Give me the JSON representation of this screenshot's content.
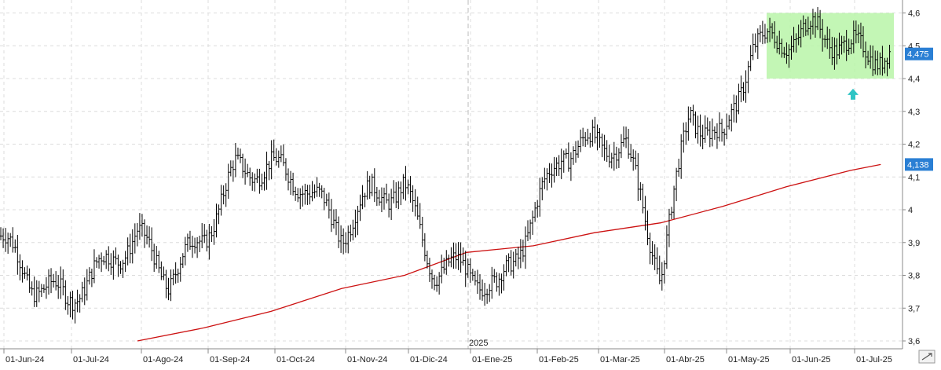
{
  "chart_data": {
    "type": "ohlc",
    "period": "daily",
    "x_tick_labels": [
      "01-Jun-24",
      "01-Jul-24",
      "01-Ago-24",
      "01-Sep-24",
      "01-Oct-24",
      "01-Nov-24",
      "01-Dic-24",
      "01-Ene-25",
      "01-Feb-25",
      "01-Mar-25",
      "01-Abr-25",
      "01-May-25",
      "01-Jun-25",
      "01-Jul-25"
    ],
    "year_marker_label": "2025",
    "y_tick_labels": [
      "3,6",
      "3,7",
      "3,8",
      "3,9",
      "4",
      "4,1",
      "4,2",
      "4,3",
      "4,4",
      "4,5",
      "4,6"
    ],
    "y_ticks": [
      3.6,
      3.7,
      3.8,
      3.9,
      4.0,
      4.1,
      4.2,
      4.3,
      4.4,
      4.5,
      4.6
    ],
    "ylim": [
      3.59,
      4.62
    ],
    "grid": true,
    "last_price_label": "4,475",
    "last_price": 4.475,
    "ma_label": "4,138",
    "ma_value": 4.138,
    "price_series": {
      "name": "",
      "color": "#000000",
      "points": [
        {
          "x": "01-Jun-24",
          "close": 3.92
        },
        {
          "x": "15-Jun-24",
          "close": 3.78
        },
        {
          "x": "01-Jul-24",
          "close": 3.73
        },
        {
          "x": "15-Jul-24",
          "close": 3.82
        },
        {
          "x": "01-Ago-24",
          "close": 3.92
        },
        {
          "x": "15-Ago-24",
          "close": 3.79
        },
        {
          "x": "01-Sep-24",
          "close": 3.92
        },
        {
          "x": "15-Sep-24",
          "close": 4.12
        },
        {
          "x": "01-Oct-24",
          "close": 4.13
        },
        {
          "x": "15-Oct-24",
          "close": 4.08
        },
        {
          "x": "01-Nov-24",
          "close": 3.93
        },
        {
          "x": "15-Nov-24",
          "close": 4.05
        },
        {
          "x": "01-Dic-24",
          "close": 4.06
        },
        {
          "x": "15-Dic-24",
          "close": 3.82
        },
        {
          "x": "01-Ene-25",
          "close": 3.82
        },
        {
          "x": "15-Ene-25",
          "close": 3.75
        },
        {
          "x": "01-Feb-25",
          "close": 3.98
        },
        {
          "x": "15-Feb-25",
          "close": 4.18
        },
        {
          "x": "01-Mar-25",
          "close": 4.2
        },
        {
          "x": "15-Mar-25",
          "close": 4.2
        },
        {
          "x": "01-Abr-25",
          "close": 3.8
        },
        {
          "x": "15-Abr-25",
          "close": 4.3
        },
        {
          "x": "01-May-25",
          "close": 4.2
        },
        {
          "x": "15-May-25",
          "close": 4.5
        },
        {
          "x": "01-Jun-25",
          "close": 4.52
        },
        {
          "x": "15-Jun-25",
          "close": 4.55
        },
        {
          "x": "01-Jul-25",
          "close": 4.49
        },
        {
          "x": "15-Jul-25",
          "close": 4.475
        }
      ]
    },
    "moving_average_series": {
      "name": "",
      "color": "#cc1111",
      "points": [
        {
          "x": "01-Ago-24",
          "y": 3.6
        },
        {
          "x": "01-Sep-24",
          "y": 3.64
        },
        {
          "x": "01-Oct-24",
          "y": 3.69
        },
        {
          "x": "01-Nov-24",
          "y": 3.76
        },
        {
          "x": "01-Dic-24",
          "y": 3.8
        },
        {
          "x": "01-Ene-25",
          "y": 3.87
        },
        {
          "x": "01-Feb-25",
          "y": 3.89
        },
        {
          "x": "01-Mar-25",
          "y": 3.93
        },
        {
          "x": "01-Abr-25",
          "y": 3.96
        },
        {
          "x": "01-May-25",
          "y": 4.01
        },
        {
          "x": "01-Jun-25",
          "y": 4.07
        },
        {
          "x": "01-Jul-25",
          "y": 4.12
        },
        {
          "x": "15-Jul-25",
          "y": 4.138
        }
      ]
    },
    "highlight_range": {
      "y_low": 4.4,
      "y_high": 4.6,
      "color": "#b8f5a8",
      "from": "01-May-25",
      "to": "15-Jul-25"
    },
    "annotation_arrow": {
      "icon": "up-arrow-icon",
      "color": "#2ec4c4",
      "x": "01-Jul-25",
      "y": 4.35
    }
  }
}
